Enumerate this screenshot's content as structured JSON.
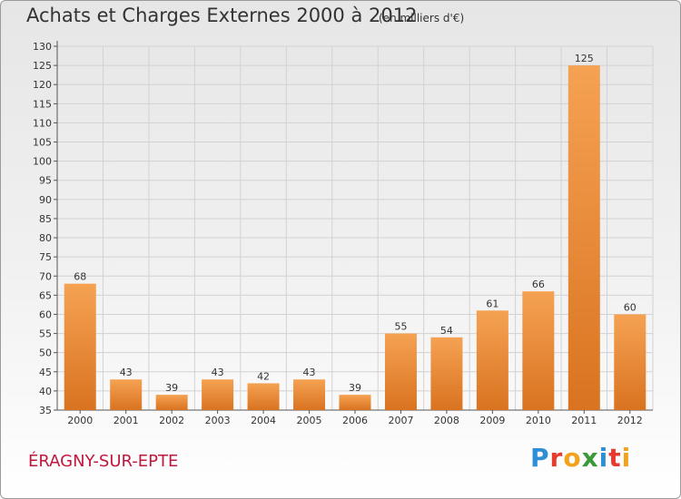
{
  "header": {
    "title": "Achats et Charges Externes 2000 à 2012",
    "subtitle": "(en milliers d'€)"
  },
  "footer": {
    "city": "ÉRAGNY-SUR-EPTE",
    "logo": {
      "p": "P",
      "r": "r",
      "o": "o",
      "x": "x",
      "i": "i",
      "t": "t",
      "i2": "i"
    }
  },
  "colors": {
    "bar_top": "#f5a253",
    "bar_bottom": "#d97320",
    "city": "#c0183c"
  },
  "chart_data": {
    "type": "bar",
    "title": "Achats et Charges Externes 2000 à 2012",
    "subtitle": "(en milliers d'€)",
    "xlabel": "",
    "ylabel": "",
    "categories": [
      "2000",
      "2001",
      "2002",
      "2003",
      "2004",
      "2005",
      "2006",
      "2007",
      "2008",
      "2009",
      "2010",
      "2011",
      "2012"
    ],
    "values": [
      68,
      43,
      39,
      43,
      42,
      43,
      39,
      55,
      54,
      61,
      66,
      125,
      60
    ],
    "ylim": [
      35,
      130
    ],
    "yticks": [
      35,
      40,
      45,
      50,
      55,
      60,
      65,
      70,
      75,
      80,
      85,
      90,
      95,
      100,
      105,
      110,
      115,
      120,
      125,
      130
    ],
    "grid": true,
    "legend": "none"
  }
}
